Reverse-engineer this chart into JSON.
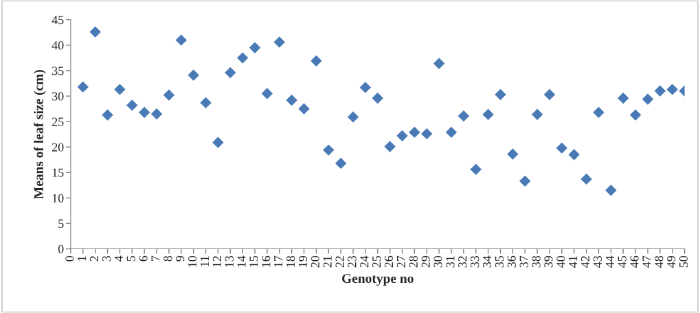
{
  "chart_data": {
    "type": "scatter",
    "xlabel": "Genotype no",
    "ylabel": "Means of leaf size (cm)",
    "x": [
      1,
      2,
      3,
      4,
      5,
      6,
      7,
      8,
      9,
      10,
      11,
      12,
      13,
      14,
      15,
      16,
      17,
      18,
      19,
      20,
      21,
      22,
      23,
      24,
      25,
      26,
      27,
      28,
      29,
      30,
      31,
      32,
      33,
      34,
      35,
      36,
      37,
      38,
      39,
      40,
      41,
      42,
      43,
      44,
      45,
      46,
      47,
      48,
      49,
      50
    ],
    "values": [
      31.8,
      42.6,
      26.3,
      31.3,
      28.2,
      26.8,
      26.5,
      30.2,
      41.0,
      34.1,
      28.7,
      20.9,
      34.6,
      37.5,
      39.5,
      30.5,
      40.6,
      29.2,
      27.5,
      36.9,
      19.4,
      16.8,
      25.9,
      31.7,
      29.6,
      20.1,
      22.2,
      22.9,
      22.6,
      36.4,
      22.9,
      26.1,
      15.6,
      26.4,
      30.3,
      18.6,
      13.3,
      26.4,
      30.3,
      19.8,
      18.5,
      13.7,
      26.8,
      11.5,
      29.6,
      26.3,
      29.4,
      31.0,
      31.3,
      31.0
    ],
    "color": "#4a7ab5",
    "marker": "diamond",
    "xlim": [
      0,
      50
    ],
    "xticks": [
      0,
      1,
      2,
      3,
      4,
      5,
      6,
      7,
      8,
      9,
      10,
      11,
      12,
      13,
      14,
      15,
      16,
      17,
      18,
      19,
      20,
      21,
      22,
      23,
      24,
      25,
      26,
      27,
      28,
      29,
      30,
      31,
      32,
      33,
      34,
      35,
      36,
      37,
      38,
      39,
      40,
      41,
      42,
      43,
      44,
      45,
      46,
      47,
      48,
      49,
      50
    ],
    "ylim": [
      0,
      45
    ],
    "yticks": [
      0,
      5,
      10,
      15,
      20,
      25,
      30,
      35,
      40,
      45
    ],
    "grid": false,
    "legend": false
  }
}
